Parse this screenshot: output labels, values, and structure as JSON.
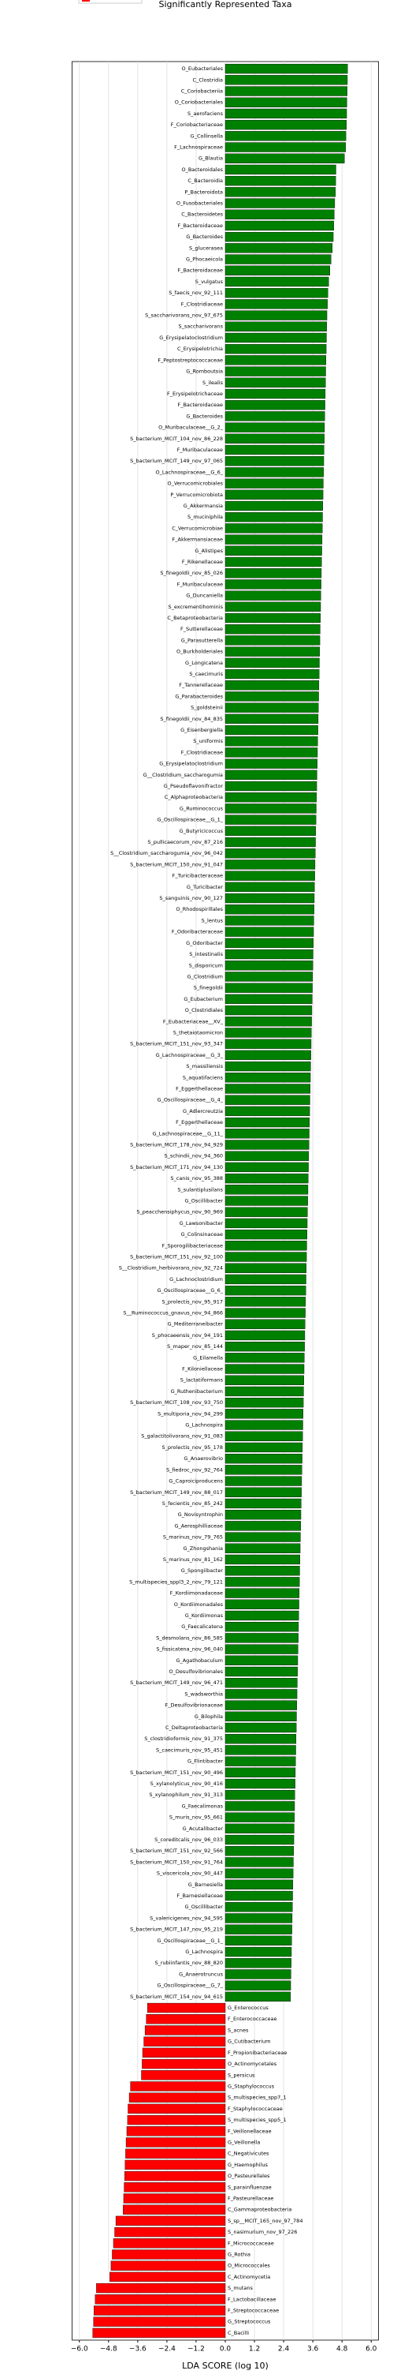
{
  "chart_data": {
    "type": "barh",
    "title": "Significantly Represented Taxa",
    "xlabel": "LDA SCORE (log 10)",
    "positive_color": "#008000",
    "negative_color": "#ff0000",
    "grid": true,
    "xlim": [
      -6.3,
      6.3
    ],
    "xticks": [
      {
        "value": -6,
        "label": "−6.0"
      },
      {
        "value": -4.8,
        "label": "−4.8"
      },
      {
        "value": -3.6,
        "label": "−3.6"
      },
      {
        "value": -2.4,
        "label": "−2.4"
      },
      {
        "value": -1.2,
        "label": "−1.2"
      },
      {
        "value": 0,
        "label": "0.0"
      },
      {
        "value": 1.2,
        "label": "1.2"
      },
      {
        "value": 2.4,
        "label": "2.4"
      },
      {
        "value": 3.6,
        "label": "3.6"
      },
      {
        "value": 4.8,
        "label": "4.8"
      },
      {
        "value": 6,
        "label": "6.0"
      }
    ],
    "categories": [
      "O_Eubacteriales",
      "C_Clostridia",
      "C_Coriobacteriia",
      "O_Coriobacteriales",
      "S_aerofaciens",
      "F_Coriobacteriaceae",
      "G_Collinsella",
      "F_Lachnospiraceae",
      "G_Blautia",
      "O_Bacteroidales",
      "C_Bacteroidia",
      "P_Bacteroidota",
      "O_Fusobacteriales",
      "C_Bacteroidetes",
      "F_Bacteroidaceae",
      "G_Bacteroides",
      "S_glucerasea",
      "G_Phocaeicola",
      "F_Bacteroidaceae",
      "S_vulgatus",
      "S_faecis_nov_92_111",
      "F_Clostridiaceae",
      "S_saccharivorans_nov_97_675",
      "S_saccharivorans",
      "G_Erysipelatoclostridium",
      "C_Erysipelotrichia",
      "F_Peptostreptococcaceae",
      "G_Romboutsia",
      "S_ilealis",
      "F_Erysipelotrichaceae",
      "F_Bacteroidaceae",
      "G_Bacteroides",
      "O_Muribaculaceae__G_2_",
      "S_bacterium_MCIT_104_nov_86_228",
      "F_Muribaculaceae",
      "S_bacterium_MCIT_149_nov_97_065",
      "O_Lachnospiraceae__G_6_",
      "O_Verrucomicrobiales",
      "P_Verrucomicrobiota",
      "G_Akkermansia",
      "S_muciniphila",
      "C_Verrucomicrobiae",
      "F_Akkermansiaceae",
      "G_Alistipes",
      "F_Rikenellaceae",
      "S_finegoldii_nov_85_026",
      "F_Muribaculaceae",
      "G_Duncaniella",
      "S_excrementihominis",
      "C_Betaproteobacteria",
      "F_Sutterellaceae",
      "G_Parasutterella",
      "O_Burkholderiales",
      "G_Longicatena",
      "S_caecimuris",
      "F_Tannerellaceae",
      "G_Parabacteroides",
      "S_goldsteinii",
      "S_finegoldii_nov_84_835",
      "G_Eisenbergiella",
      "S_uniformis",
      "F_Clostridiaceae",
      "G_Erysipelatoclostridium",
      "G__Clostridium_saccharogumia",
      "G_Pseudoflavonifractor",
      "C_Alphaproteobacteria",
      "G_Ruminococcus",
      "G_Oscillospiraceae__G_1_",
      "G_Butyricicoccus",
      "S_pullicaecorum_nov_87_216",
      "S__Clostridium_saccharogumia_nov_96_042",
      "S_bacterium_MCIT_150_nov_91_047",
      "F_Turicibacteraceae",
      "G_Turicibacter",
      "S_sanguinis_nov_90_127",
      "O_Rhodospirillales",
      "S_lentus",
      "F_Odoribacteraceae",
      "G_Odoribacter",
      "S_intestinalis",
      "S_disporicum",
      "G_Clostridium",
      "S_finegoldii",
      "G_Eubacterium",
      "O_Clostridiales",
      "F_Eubacteriaceae__XV_",
      "S_thetaiotaomicron",
      "S_bacterium_MCIT_151_nov_93_347",
      "G_Lachnospiraceae__G_3_",
      "S_massiliensis",
      "S_aquatifaciens",
      "F_Eggerthellaceae",
      "G_Oscillospiraceae__G_4_",
      "G_Adlercreutzia",
      "F_Eggerthellaceae",
      "G_Lachnospiraceae__G_11_",
      "S_bacterium_MCIT_178_nov_94_929",
      "S_schindii_nov_94_360",
      "S_bacterium_MCIT_171_nov_94_130",
      "S_canis_nov_95_388",
      "S_sulantiplusilans",
      "G_Oscillibacter",
      "S_peacchensiphycus_nov_90_969",
      "G_Lawsonibacter",
      "G_Colinsinaceae",
      "F_Sporogilibacteriaceae",
      "S_bacterium_MCIT_151_nov_92_100",
      "S__Clostridium_herbivorans_nov_92_724",
      "G_Lachnoclostridium",
      "G_Oscillospiraceae__G_6_",
      "S_prolectis_nov_95_917",
      "S__Ruminococcus_gnavus_nov_94_866",
      "G_Mediterraneibacter",
      "S_phocaeensis_nov_94_191",
      "S_maper_nov_85_144",
      "G_Eilamella",
      "F_Kiloniellaceae",
      "S_lactatiformans",
      "G_Ruthenibacterium",
      "S_bacterium_MCIT_108_nov_93_750",
      "S_multiporia_nov_94_299",
      "G_Lachnospira",
      "S_galactitolivorans_nov_91_083",
      "S_prolectis_nov_95_178",
      "G_Anaerovibrio",
      "S_fiedroc_nov_92_764",
      "G_Caproiciproducens",
      "S_bacterium_MCIT_149_nov_88_017",
      "S_fecientis_nov_85_242",
      "G_Novisyntrophin",
      "G_Aerosphilliaceae",
      "S_marinus_nov_79_765",
      "G_Zhongshania",
      "S_marinus_nov_81_162",
      "G_Spongiibacter",
      "S_multispecies_sppl3_2_nov_79_121",
      "F_Kordiimonadaceae",
      "O_Kordiimonadales",
      "G_Kordiimonas",
      "G_Faecalicatena",
      "S_desmolans_nov_86_585",
      "S_fissicatena_nov_96_040",
      "G_Agathobaculum",
      "O_Desulfovibrionales",
      "S_bacterium_MCIT_149_nov_96_471",
      "S_wadsworthia",
      "F_Desulfovibrionaceae",
      "G_Bilophila",
      "C_Deltaproteobacteria",
      "S_clostridioformis_nov_91_375",
      "S_caecimuris_nov_95_451",
      "G_Flintibacter",
      "S_bacterium_MCIT_151_nov_90_496",
      "S_xylanolyticus_nov_90_416",
      "S_xylanophilum_nov_91_313",
      "G_Faecalimonas",
      "S_muris_nov_95_661",
      "G_Acutalibacter",
      "S_coreditcalis_nov_96_033",
      "S_bacterium_MCIT_151_nov_92_566",
      "S_bacterium_MCIT_150_nov_91_764",
      "S_viscericola_nov_90_447",
      "G_Barnesiella",
      "F_Barnesiellaceae",
      "G_Oscillibacter",
      "S_valericigenes_nov_94_595",
      "S_bacterium_MCIT_147_nov_95_219",
      "G_Oscillospiraceae__G_1_",
      "G_Lachnospira",
      "S_rubiinfantis_nov_88_820",
      "G_Anaerotruncus",
      "G_Oscillospiraceae__G_7_",
      "S_bacterium_MCIT_154_nov_94_615",
      "G_Enterococcus",
      "F_Enterococcaceae",
      "S_acnes",
      "G_Cutibacterium",
      "F_Propionibacteriaceae",
      "O_Actinomycetales",
      "S_persicus",
      "G_Staphylococcus",
      "S_multispecies_spp7_1",
      "F_Staphylococcaceae",
      "S_multispecies_spp5_1",
      "F_Veillonellaceae",
      "G_Veillonella",
      "C_Negativicutes",
      "G_Haemophilus",
      "O_Pasteurellales",
      "S_parainfluenzae",
      "F_Pasteurellaceae",
      "C_Gammaproteobacteria",
      "S_sp__MCIT_165_nov_97_784",
      "S_nasimurium_nov_97_226",
      "F_Micrococcaceae",
      "G_Rothia",
      "O_Micrococcales",
      "C_Actinomycetia",
      "S_mutans",
      "F_Lactobacillaceae",
      "F_Streptococcaceae",
      "G_Streptococcus",
      "C_Bacilli"
    ],
    "values": [
      5.03,
      5.02,
      5.01,
      5.0,
      4.99,
      4.98,
      4.96,
      4.95,
      4.9,
      4.55,
      4.54,
      4.53,
      4.5,
      4.48,
      4.46,
      4.44,
      4.4,
      4.35,
      4.3,
      4.25,
      4.22,
      4.2,
      4.18,
      4.17,
      4.16,
      4.15,
      4.14,
      4.13,
      4.12,
      4.11,
      4.1,
      4.09,
      4.08,
      4.07,
      4.06,
      4.05,
      4.04,
      4.03,
      4.02,
      4.01,
      4.0,
      3.99,
      3.98,
      3.97,
      3.96,
      3.95,
      3.94,
      3.93,
      3.92,
      3.91,
      3.9,
      3.89,
      3.88,
      3.87,
      3.86,
      3.85,
      3.84,
      3.83,
      3.82,
      3.81,
      3.8,
      3.79,
      3.78,
      3.77,
      3.76,
      3.75,
      3.74,
      3.73,
      3.72,
      3.71,
      3.7,
      3.69,
      3.68,
      3.67,
      3.66,
      3.65,
      3.64,
      3.63,
      3.62,
      3.61,
      3.6,
      3.59,
      3.58,
      3.57,
      3.56,
      3.55,
      3.54,
      3.53,
      3.52,
      3.51,
      3.5,
      3.49,
      3.48,
      3.47,
      3.46,
      3.45,
      3.44,
      3.43,
      3.42,
      3.41,
      3.4,
      3.39,
      3.38,
      3.37,
      3.36,
      3.35,
      3.34,
      3.33,
      3.32,
      3.31,
      3.3,
      3.29,
      3.28,
      3.27,
      3.26,
      3.25,
      3.24,
      3.23,
      3.22,
      3.21,
      3.2,
      3.19,
      3.18,
      3.17,
      3.16,
      3.15,
      3.14,
      3.13,
      3.12,
      3.11,
      3.1,
      3.09,
      3.08,
      3.07,
      3.06,
      3.05,
      3.04,
      3.03,
      3.02,
      3.01,
      3.0,
      2.99,
      2.98,
      2.97,
      2.96,
      2.95,
      2.94,
      2.93,
      2.92,
      2.91,
      2.9,
      2.89,
      2.88,
      2.87,
      2.86,
      2.85,
      2.84,
      2.83,
      2.82,
      2.81,
      2.8,
      2.79,
      2.78,
      2.77,
      2.76,
      2.75,
      2.74,
      2.73,
      2.72,
      2.71,
      2.7,
      2.69,
      2.68,
      -3.2,
      -3.25,
      -3.3,
      -3.35,
      -3.4,
      -3.42,
      -3.45,
      -3.9,
      -3.95,
      -4.0,
      -4.02,
      -4.05,
      -4.08,
      -4.1,
      -4.12,
      -4.14,
      -4.16,
      -4.18,
      -4.2,
      -4.5,
      -4.55,
      -4.6,
      -4.65,
      -4.7,
      -4.75,
      -5.3,
      -5.35,
      -5.4,
      -5.42,
      -5.45
    ]
  }
}
